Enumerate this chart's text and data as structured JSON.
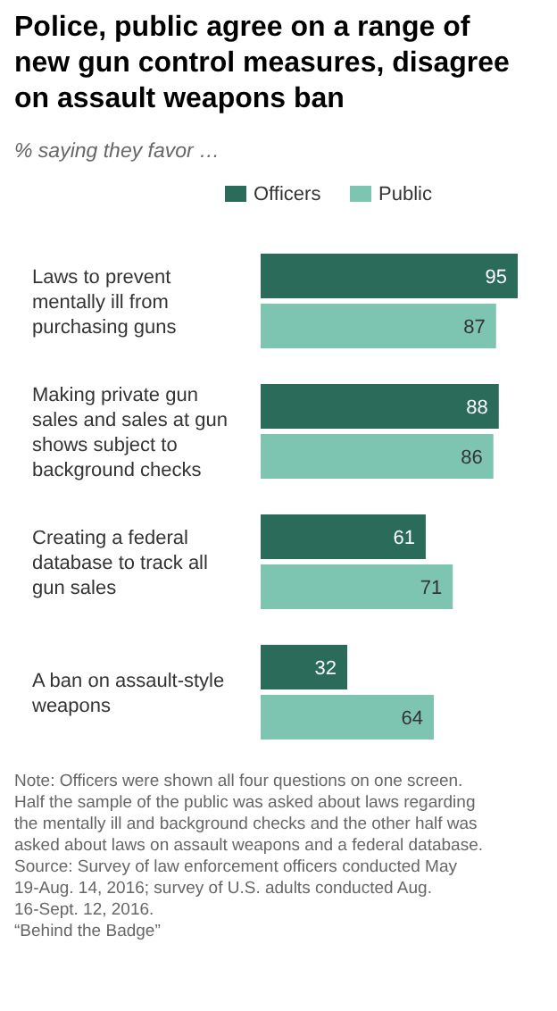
{
  "chart_data": {
    "type": "bar",
    "orientation": "horizontal",
    "title": "Police, public agree on a range of new gun control measures, disagree on assault weapons ban",
    "subtitle": "% saying they favor …",
    "categories": [
      "Laws to prevent mentally ill from purchasing guns",
      "Making private gun sales and sales at gun shows subject to background checks",
      "Creating a federal database to track all gun sales",
      "A ban on assault-style weapons"
    ],
    "series": [
      {
        "name": "Officers",
        "color": "#2a6b5a",
        "values": [
          95,
          88,
          61,
          32
        ]
      },
      {
        "name": "Public",
        "color": "#7dc5b0",
        "values": [
          87,
          86,
          71,
          64
        ]
      }
    ],
    "data_labels": true,
    "legend": "top",
    "annotations": [
      "Note: Officers were shown all four questions on one screen. Half the sample of the public was asked about laws regarding the mentally ill and background checks and the other half was asked about laws on assault weapons and a federal database.",
      "Source: Survey of law enforcement officers conducted May 19-Aug. 14, 2016; survey of U.S. adults conducted Aug. 16-Sept. 12, 2016.",
      "“Behind the Badge”"
    ]
  }
}
